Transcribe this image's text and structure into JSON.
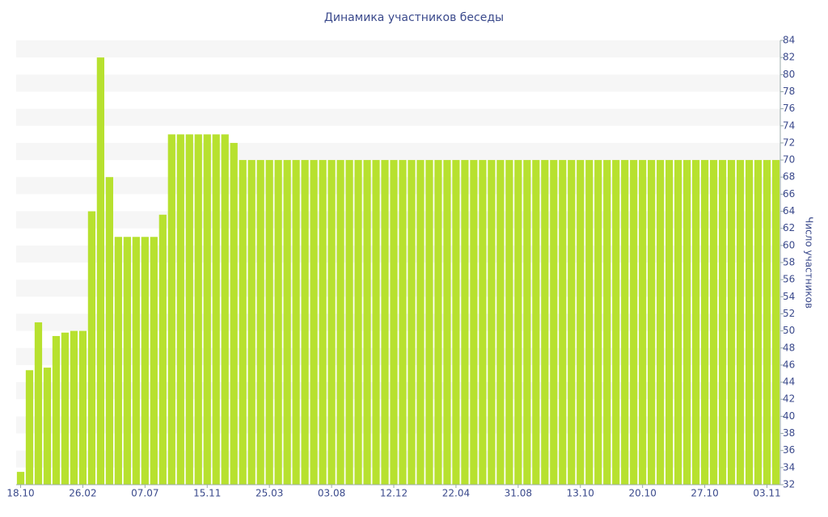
{
  "chart_data": {
    "type": "bar",
    "title": "Динамика участников беседы",
    "y_label": "Число участников",
    "categories": [
      "18.10",
      null,
      null,
      null,
      null,
      null,
      null,
      "26.02",
      null,
      null,
      null,
      null,
      null,
      null,
      "07.07",
      null,
      null,
      null,
      null,
      null,
      null,
      "15.11",
      null,
      null,
      null,
      null,
      null,
      null,
      "25.03",
      null,
      null,
      null,
      null,
      null,
      null,
      "03.08",
      null,
      null,
      null,
      null,
      null,
      null,
      "12.12",
      null,
      null,
      null,
      null,
      null,
      null,
      "22.04",
      null,
      null,
      null,
      null,
      null,
      null,
      "31.08",
      null,
      null,
      null,
      null,
      null,
      null,
      "13.10",
      null,
      null,
      null,
      null,
      null,
      null,
      "20.10",
      null,
      null,
      null,
      null,
      null,
      null,
      "27.10",
      null,
      null,
      null,
      null,
      null,
      null,
      "03.11",
      null
    ],
    "values": [
      33.5,
      45.4,
      51,
      45.7,
      49.4,
      49.8,
      50,
      50,
      64,
      82,
      68,
      61,
      61,
      61,
      61,
      61,
      63.6,
      73,
      73,
      73,
      73,
      73,
      73,
      73,
      72,
      70,
      70,
      70,
      70,
      70,
      70,
      70,
      70,
      70,
      70,
      70,
      70,
      70,
      70,
      70,
      70,
      70,
      70,
      70,
      70,
      70,
      70,
      70,
      70,
      70,
      70,
      70,
      70,
      70,
      70,
      70,
      70,
      70,
      70,
      70,
      70,
      70,
      70,
      70,
      70,
      70,
      70,
      70,
      70,
      70,
      70,
      70,
      70,
      70,
      70,
      70,
      70,
      70,
      70,
      70,
      70,
      70,
      70,
      70,
      70,
      70
    ],
    "color": "#b7e12f",
    "ylim": [
      32,
      84
    ],
    "yticks": [
      32,
      34,
      36,
      38,
      40,
      42,
      44,
      46,
      48,
      50,
      52,
      54,
      56,
      58,
      60,
      62,
      64,
      66,
      68,
      70,
      72,
      74,
      76,
      78,
      80,
      82,
      84
    ],
    "y_axis_side": "right",
    "grid": "bands"
  }
}
